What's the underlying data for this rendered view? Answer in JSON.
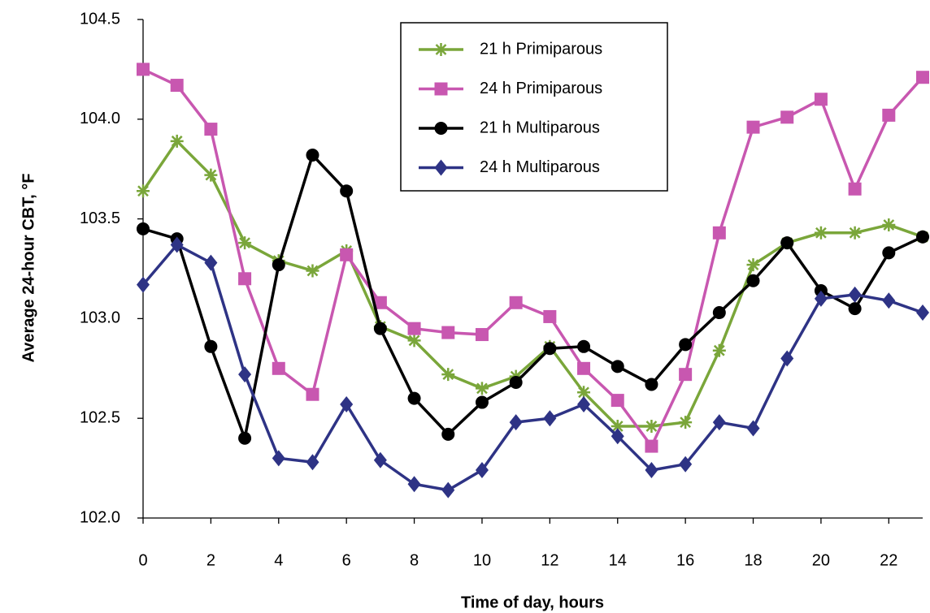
{
  "chart_data": {
    "type": "line",
    "x_label": "Time of day, hours",
    "y_label": "Average 24-hour CBT, °F",
    "x": [
      0,
      1,
      2,
      3,
      4,
      5,
      6,
      7,
      8,
      9,
      10,
      11,
      12,
      13,
      14,
      15,
      16,
      17,
      18,
      19,
      20,
      21,
      22,
      23
    ],
    "xlim": [
      0,
      23
    ],
    "xticks": [
      0,
      2,
      4,
      6,
      8,
      10,
      12,
      14,
      16,
      18,
      20,
      22
    ],
    "ylim": [
      102,
      104.5
    ],
    "yticks": [
      {
        "value": 102,
        "label": "102.0"
      },
      {
        "value": 102.5,
        "label": "102.5"
      },
      {
        "value": 103,
        "label": "103.0"
      },
      {
        "value": 103.5,
        "label": "103.5"
      },
      {
        "value": 104,
        "label": "104.0"
      },
      {
        "value": 104.5,
        "label": "104.5"
      }
    ],
    "grid": false,
    "legend": "top-center",
    "series": [
      {
        "name": "21 h Primiparous",
        "color": "#7aa63a",
        "marker": "asterisk",
        "values": [
          103.64,
          103.89,
          103.72,
          103.38,
          103.29,
          103.24,
          103.34,
          102.96,
          102.89,
          102.72,
          102.65,
          102.71,
          102.86,
          102.63,
          102.46,
          102.46,
          102.48,
          102.84,
          103.27,
          103.38,
          103.43,
          103.43,
          103.47,
          103.41
        ]
      },
      {
        "name": "24 h Primiparous",
        "color": "#c857b0",
        "marker": "square",
        "values": [
          104.25,
          104.17,
          103.95,
          103.2,
          102.75,
          102.62,
          103.32,
          103.08,
          102.95,
          102.93,
          102.92,
          103.08,
          103.01,
          102.75,
          102.59,
          102.36,
          102.72,
          103.43,
          103.96,
          104.01,
          104.1,
          103.65,
          104.02,
          104.21
        ]
      },
      {
        "name": "21 h Multiparous",
        "color": "#000000",
        "marker": "circle",
        "values": [
          103.45,
          103.4,
          102.86,
          102.4,
          103.27,
          103.82,
          103.64,
          102.95,
          102.6,
          102.42,
          102.58,
          102.68,
          102.85,
          102.86,
          102.76,
          102.67,
          102.87,
          103.03,
          103.19,
          103.38,
          103.14,
          103.05,
          103.33,
          103.41
        ]
      },
      {
        "name": "24 h Multiparous",
        "color": "#2e3385",
        "marker": "diamond",
        "values": [
          103.17,
          103.37,
          103.28,
          102.72,
          102.3,
          102.28,
          102.57,
          102.29,
          102.17,
          102.14,
          102.24,
          102.48,
          102.5,
          102.57,
          102.41,
          102.24,
          102.27,
          102.48,
          102.45,
          102.8,
          103.1,
          103.12,
          103.09,
          103.03
        ]
      }
    ]
  }
}
